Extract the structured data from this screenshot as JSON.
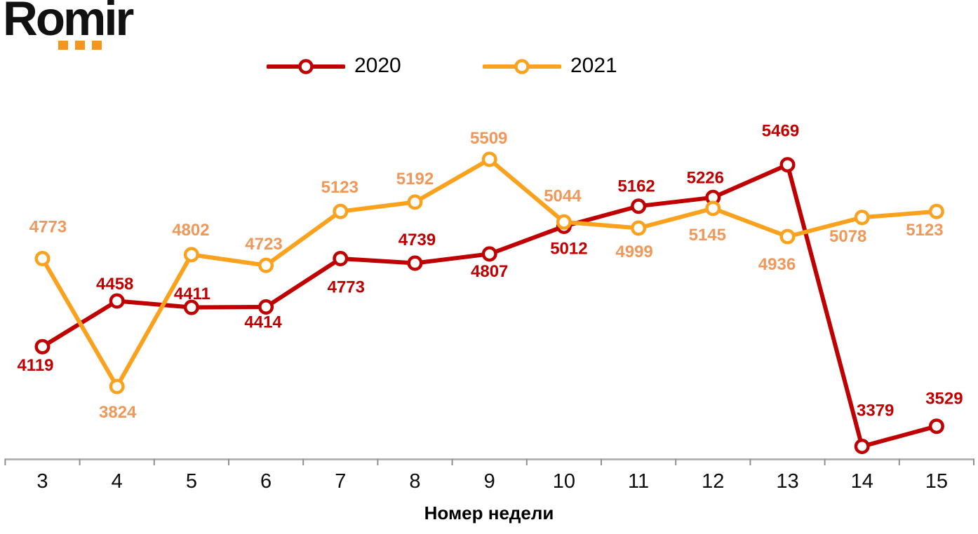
{
  "logo": {
    "text": "Romir",
    "dot_color": "#f7941e"
  },
  "legend": [
    {
      "label": "2020",
      "color": "#c00000"
    },
    {
      "label": "2021",
      "color": "#faa21e"
    }
  ],
  "chart_data": {
    "type": "line",
    "title": "",
    "xlabel": "Номер недели",
    "ylabel": "",
    "x": [
      3,
      4,
      5,
      6,
      7,
      8,
      9,
      10,
      11,
      12,
      13,
      14,
      15
    ],
    "series": [
      {
        "name": "2020",
        "color": "#c00000",
        "label_color": "#c00000",
        "values": [
          4119,
          4458,
          4411,
          4414,
          4773,
          4739,
          4807,
          5012,
          5162,
          5226,
          5469,
          3379,
          3529
        ]
      },
      {
        "name": "2021",
        "color": "#faa21e",
        "label_color": "#f0985a",
        "values": [
          4773,
          3824,
          4802,
          4723,
          5123,
          5192,
          5509,
          5044,
          4999,
          5145,
          4936,
          5078,
          5123
        ]
      }
    ],
    "ylim": [
      3283,
      5700
    ],
    "grid": false,
    "y_axis_visible": false,
    "markers": "open-circle",
    "data_labels": true,
    "legend_position": "top-center",
    "axis_color": "#a9a9a9"
  }
}
